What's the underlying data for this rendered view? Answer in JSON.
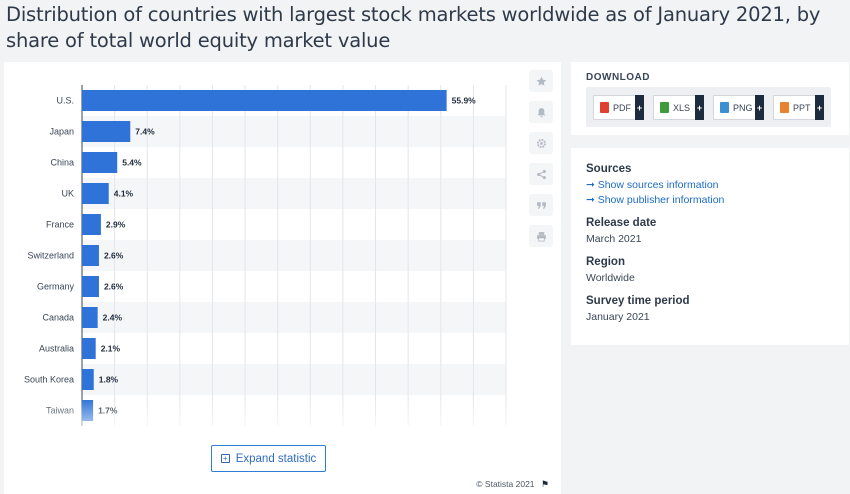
{
  "page": {
    "title": "Distribution of countries with largest stock markets worldwide as of January 2021, by share of total world equity market value"
  },
  "toolbar": {
    "icons": [
      "star-icon",
      "bell-icon",
      "gear-icon",
      "share-icon",
      "quote-icon",
      "print-icon"
    ]
  },
  "chart_data": {
    "type": "bar",
    "orientation": "horizontal",
    "categories": [
      "U.S.",
      "Japan",
      "China",
      "UK",
      "France",
      "Switzerland",
      "Germany",
      "Canada",
      "Australia",
      "South Korea",
      "Taiwan"
    ],
    "values": [
      55.9,
      7.4,
      5.4,
      4.1,
      2.9,
      2.6,
      2.6,
      2.4,
      2.1,
      1.8,
      1.7
    ],
    "value_labels": [
      "55.9%",
      "7.4%",
      "5.4%",
      "4.1%",
      "2.9%",
      "2.6%",
      "2.6%",
      "2.4%",
      "2.1%",
      "1.8%",
      "1.7%"
    ],
    "xlim": [
      0,
      65
    ],
    "grid": true,
    "bar_color": "#2f73d9"
  },
  "expand": {
    "label": "Expand statistic"
  },
  "footer": {
    "copyright": "© Statista 2021"
  },
  "download": {
    "heading": "DOWNLOAD",
    "buttons": [
      {
        "label": "PDF",
        "icon": "pdf-file-icon",
        "color": "#e0402f"
      },
      {
        "label": "XLS",
        "icon": "xls-file-icon",
        "color": "#3f9a3a"
      },
      {
        "label": "PNG",
        "icon": "png-file-icon",
        "color": "#3c8fd0"
      },
      {
        "label": "PPT",
        "icon": "ppt-file-icon",
        "color": "#e8822e"
      }
    ],
    "plus": "+"
  },
  "info": {
    "sources_heading": "Sources",
    "show_sources": "Show sources information",
    "show_publisher": "Show publisher information",
    "release_heading": "Release date",
    "release_value": "March 2021",
    "region_heading": "Region",
    "region_value": "Worldwide",
    "period_heading": "Survey time period",
    "period_value": "January 2021"
  }
}
